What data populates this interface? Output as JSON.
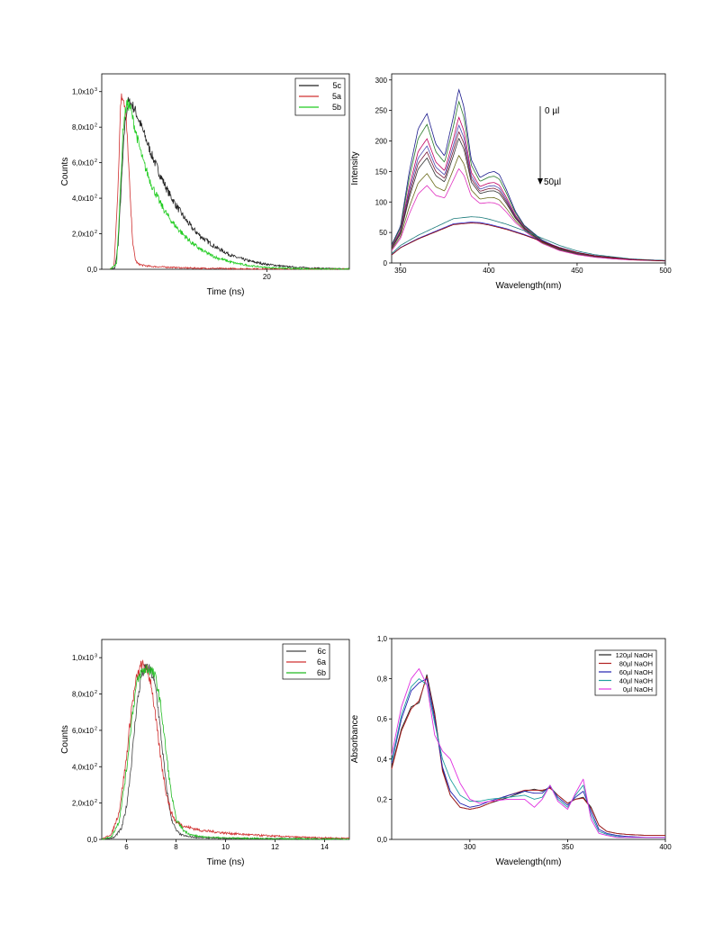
{
  "chart_data": [
    {
      "type": "line",
      "xlabel": "Time (ns)",
      "ylabel": "Counts",
      "xlim": [
        0,
        30
      ],
      "ylim": [
        0,
        1100
      ],
      "x_ticks": [
        20
      ],
      "y_ticks": [
        {
          "value": 0,
          "label": "0,0"
        },
        {
          "value": 200,
          "label": "2,0x10",
          "exp": "2"
        },
        {
          "value": 400,
          "label": "4,0x10",
          "exp": "2"
        },
        {
          "value": 600,
          "label": "6,0x10",
          "exp": "2"
        },
        {
          "value": 800,
          "label": "8,0x10",
          "exp": "2"
        },
        {
          "value": 1000,
          "label": "1,0x10",
          "exp": "3"
        }
      ],
      "legend_position": "top-right",
      "series": [
        {
          "name": "5c",
          "color": "#222222",
          "noisy": true,
          "x": [
            1.0,
            1.6,
            2.0,
            2.4,
            2.8,
            3.2,
            3.6,
            4.0,
            5.0,
            6.0,
            7.0,
            8.0,
            9.0,
            10.0,
            11.0,
            12.0,
            13.0,
            14.0,
            15.0,
            16.0,
            18.0,
            20.0,
            22.0,
            24.0,
            26.0,
            28.0,
            30.0
          ],
          "y": [
            0,
            5,
            150,
            500,
            820,
            940,
            930,
            900,
            780,
            650,
            540,
            440,
            360,
            290,
            230,
            185,
            150,
            120,
            95,
            72,
            45,
            28,
            17,
            10,
            6,
            3,
            2
          ]
        },
        {
          "name": "5a",
          "color": "#d03030",
          "noisy": true,
          "x": [
            1.0,
            1.5,
            2.0,
            2.3,
            2.6,
            2.9,
            3.2,
            3.5,
            3.8,
            4.1,
            4.4,
            5.0,
            6.0,
            8.0,
            10.0,
            12.0,
            15.0,
            20.0,
            30.0
          ],
          "y": [
            0,
            20,
            500,
            960,
            980,
            880,
            650,
            350,
            130,
            50,
            30,
            22,
            16,
            12,
            8,
            6,
            4,
            2,
            1
          ]
        },
        {
          "name": "5b",
          "color": "#22cc22",
          "noisy": true,
          "x": [
            1.0,
            1.8,
            2.2,
            2.6,
            3.0,
            3.4,
            3.8,
            4.5,
            5.0,
            6.0,
            7.0,
            8.0,
            9.0,
            10.0,
            11.0,
            12.0,
            13.0,
            14.0,
            16.0,
            18.0,
            20.0,
            24.0,
            30.0
          ],
          "y": [
            0,
            30,
            380,
            800,
            930,
            920,
            840,
            700,
            610,
            480,
            380,
            300,
            240,
            190,
            145,
            110,
            85,
            64,
            36,
            20,
            10,
            3,
            1
          ]
        }
      ]
    },
    {
      "type": "line",
      "xlabel": "Wavelength(nm)",
      "ylabel": "Intensity",
      "xlim": [
        345,
        500
      ],
      "ylim": [
        0,
        310
      ],
      "x_ticks": [
        350,
        400,
        450,
        500
      ],
      "y_ticks": [
        0,
        50,
        100,
        150,
        200,
        250,
        300
      ],
      "annotation_top": "0 µl",
      "annotation_bottom": "50µl",
      "curves": [
        {
          "color": "#1a1a8c",
          "scale": 1.0
        },
        {
          "color": "#2a7a2a",
          "scale": 0.91
        },
        {
          "color": "#c00060",
          "scale": 0.79
        },
        {
          "color": "#4a4ab0",
          "scale": 0.73
        },
        {
          "color": "#7a1a3a",
          "scale": 0.68
        },
        {
          "color": "#333333",
          "scale": 0.63
        },
        {
          "color": "#6a6a1a",
          "scale": 0.5
        },
        {
          "color": "#e030c0",
          "scale": 0.4
        },
        {
          "color": "#1a7a7a",
          "scale": 0.26,
          "flat": true
        },
        {
          "color": "#3030d0",
          "scale": 0.23,
          "flat": true
        },
        {
          "color": "#8a0000",
          "scale": 0.225,
          "flat": true
        }
      ]
    },
    {
      "type": "line",
      "xlabel": "Time (ns)",
      "ylabel": "Counts",
      "xlim": [
        5,
        15
      ],
      "ylim": [
        0,
        1100
      ],
      "x_ticks": [
        6,
        8,
        10,
        12,
        14
      ],
      "y_ticks": [
        {
          "value": 0,
          "label": "0,0"
        },
        {
          "value": 200,
          "label": "2,0x10",
          "exp": "2"
        },
        {
          "value": 400,
          "label": "4,0x10",
          "exp": "2"
        },
        {
          "value": 600,
          "label": "6,0x10",
          "exp": "2"
        },
        {
          "value": 800,
          "label": "8,0x10",
          "exp": "2"
        },
        {
          "value": 1000,
          "label": "1,0x10",
          "exp": "3"
        }
      ],
      "legend_position": "top-right",
      "series": [
        {
          "name": "6c",
          "color": "#444444",
          "noisy": true,
          "x": [
            5.0,
            5.5,
            5.8,
            6.0,
            6.2,
            6.4,
            6.6,
            6.8,
            7.0,
            7.2,
            7.4,
            7.6,
            7.8,
            8.0,
            8.2,
            8.5,
            9.0,
            10.0,
            12.0,
            15.0
          ],
          "y": [
            0,
            10,
            60,
            180,
            420,
            720,
            900,
            950,
            920,
            820,
            560,
            300,
            120,
            50,
            25,
            15,
            10,
            6,
            3,
            1
          ]
        },
        {
          "name": "6a",
          "color": "#d03030",
          "noisy": true,
          "x": [
            5.0,
            5.4,
            5.7,
            6.0,
            6.2,
            6.4,
            6.6,
            6.8,
            7.0,
            7.2,
            7.4,
            7.6,
            7.8,
            8.0,
            8.4,
            9.0,
            10.0,
            11.0,
            12.0,
            13.0,
            15.0
          ],
          "y": [
            0,
            30,
            150,
            450,
            720,
            880,
            960,
            940,
            860,
            640,
            430,
            260,
            150,
            95,
            70,
            50,
            35,
            25,
            18,
            12,
            6
          ]
        },
        {
          "name": "6b",
          "color": "#22bb22",
          "noisy": true,
          "x": [
            5.0,
            5.4,
            5.7,
            6.0,
            6.2,
            6.4,
            6.6,
            6.8,
            7.0,
            7.2,
            7.4,
            7.6,
            7.8,
            8.0,
            8.3,
            8.6,
            9.0,
            10.0,
            12.0,
            15.0
          ],
          "y": [
            0,
            15,
            100,
            380,
            650,
            850,
            920,
            940,
            930,
            880,
            720,
            480,
            260,
            110,
            50,
            25,
            15,
            8,
            4,
            2
          ]
        }
      ]
    },
    {
      "type": "line",
      "xlabel": "Wavelength(nm)",
      "ylabel": "Absorbance",
      "xlim": [
        260,
        400
      ],
      "ylim": [
        0,
        1.0
      ],
      "x_ticks": [
        300,
        350,
        400
      ],
      "y_ticks": [
        {
          "value": 0,
          "label": "0,0"
        },
        {
          "value": 0.2,
          "label": "0,2"
        },
        {
          "value": 0.4,
          "label": "0,4"
        },
        {
          "value": 0.6,
          "label": "0,6"
        },
        {
          "value": 0.8,
          "label": "0,8"
        },
        {
          "value": 1.0,
          "label": "1,0"
        }
      ],
      "legend_position": "top-right",
      "series": [
        {
          "name": "120µl NaOH",
          "color": "#222222",
          "x": [
            260,
            265,
            270,
            274,
            278,
            282,
            286,
            290,
            295,
            300,
            305,
            310,
            320,
            328,
            333,
            337,
            341,
            345,
            350,
            354,
            358,
            362,
            366,
            370,
            375,
            380,
            390,
            400
          ],
          "y": [
            0.36,
            0.55,
            0.66,
            0.68,
            0.82,
            0.63,
            0.35,
            0.22,
            0.16,
            0.15,
            0.16,
            0.18,
            0.21,
            0.24,
            0.25,
            0.24,
            0.26,
            0.22,
            0.18,
            0.2,
            0.21,
            0.16,
            0.07,
            0.04,
            0.03,
            0.025,
            0.02,
            0.02
          ]
        },
        {
          "name": "80µl NaOH",
          "color": "#b02020",
          "x": [
            260,
            265,
            270,
            274,
            278,
            282,
            286,
            290,
            295,
            300,
            305,
            310,
            320,
            328,
            333,
            337,
            341,
            345,
            350,
            354,
            358,
            362,
            366,
            370,
            375,
            380,
            390,
            400
          ],
          "y": [
            0.35,
            0.54,
            0.65,
            0.69,
            0.81,
            0.62,
            0.34,
            0.22,
            0.16,
            0.15,
            0.16,
            0.18,
            0.22,
            0.245,
            0.245,
            0.245,
            0.255,
            0.22,
            0.18,
            0.2,
            0.205,
            0.155,
            0.07,
            0.04,
            0.03,
            0.025,
            0.02,
            0.02
          ]
        },
        {
          "name": "60µl NaOH",
          "color": "#2020b0",
          "x": [
            260,
            265,
            270,
            274,
            278,
            282,
            286,
            290,
            295,
            300,
            305,
            310,
            320,
            328,
            333,
            337,
            341,
            345,
            350,
            354,
            358,
            362,
            366,
            370,
            375,
            380,
            390,
            400
          ],
          "y": [
            0.38,
            0.6,
            0.74,
            0.78,
            0.8,
            0.6,
            0.36,
            0.24,
            0.18,
            0.16,
            0.17,
            0.19,
            0.22,
            0.24,
            0.23,
            0.23,
            0.265,
            0.21,
            0.17,
            0.21,
            0.24,
            0.14,
            0.05,
            0.03,
            0.02,
            0.015,
            0.01,
            0.01
          ]
        },
        {
          "name": "40µl NaOH",
          "color": "#20a0a0",
          "x": [
            260,
            265,
            270,
            274,
            278,
            282,
            286,
            290,
            295,
            300,
            305,
            310,
            320,
            328,
            333,
            337,
            341,
            345,
            350,
            354,
            358,
            362,
            366,
            370,
            375,
            380,
            390,
            400
          ],
          "y": [
            0.39,
            0.62,
            0.76,
            0.8,
            0.77,
            0.58,
            0.4,
            0.3,
            0.22,
            0.19,
            0.19,
            0.2,
            0.21,
            0.22,
            0.2,
            0.21,
            0.27,
            0.2,
            0.16,
            0.22,
            0.27,
            0.12,
            0.04,
            0.025,
            0.015,
            0.01,
            0.01,
            0.01
          ]
        },
        {
          "name": "0µl NaOH",
          "color": "#e030e0",
          "x": [
            260,
            265,
            270,
            274,
            278,
            282,
            286,
            290,
            295,
            300,
            305,
            310,
            320,
            328,
            333,
            337,
            341,
            345,
            350,
            354,
            358,
            362,
            366,
            370,
            375,
            380,
            390,
            400
          ],
          "y": [
            0.42,
            0.66,
            0.8,
            0.85,
            0.77,
            0.52,
            0.44,
            0.4,
            0.28,
            0.2,
            0.18,
            0.19,
            0.2,
            0.2,
            0.16,
            0.2,
            0.27,
            0.19,
            0.15,
            0.23,
            0.3,
            0.1,
            0.03,
            0.02,
            0.01,
            0.01,
            0.01,
            0.01
          ]
        }
      ]
    }
  ]
}
